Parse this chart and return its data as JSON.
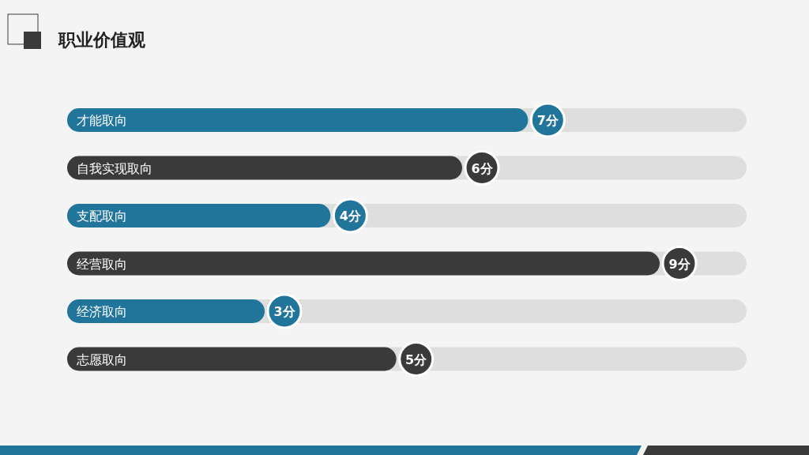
{
  "chart_data": {
    "type": "bar",
    "orientation": "horizontal",
    "title": "职业价值观",
    "categories": [
      "才能取向",
      "自我实现取向",
      "支配取向",
      "经营取向",
      "经济取向",
      "志愿取向"
    ],
    "values": [
      7,
      6,
      4,
      9,
      3,
      5
    ],
    "colors": [
      "#21749a",
      "#3a3a3a",
      "#21749a",
      "#3a3a3a",
      "#21749a",
      "#3a3a3a"
    ],
    "value_labels": [
      "7分",
      "6分",
      "4分",
      "9分",
      "3分",
      "5分"
    ]
  }
}
